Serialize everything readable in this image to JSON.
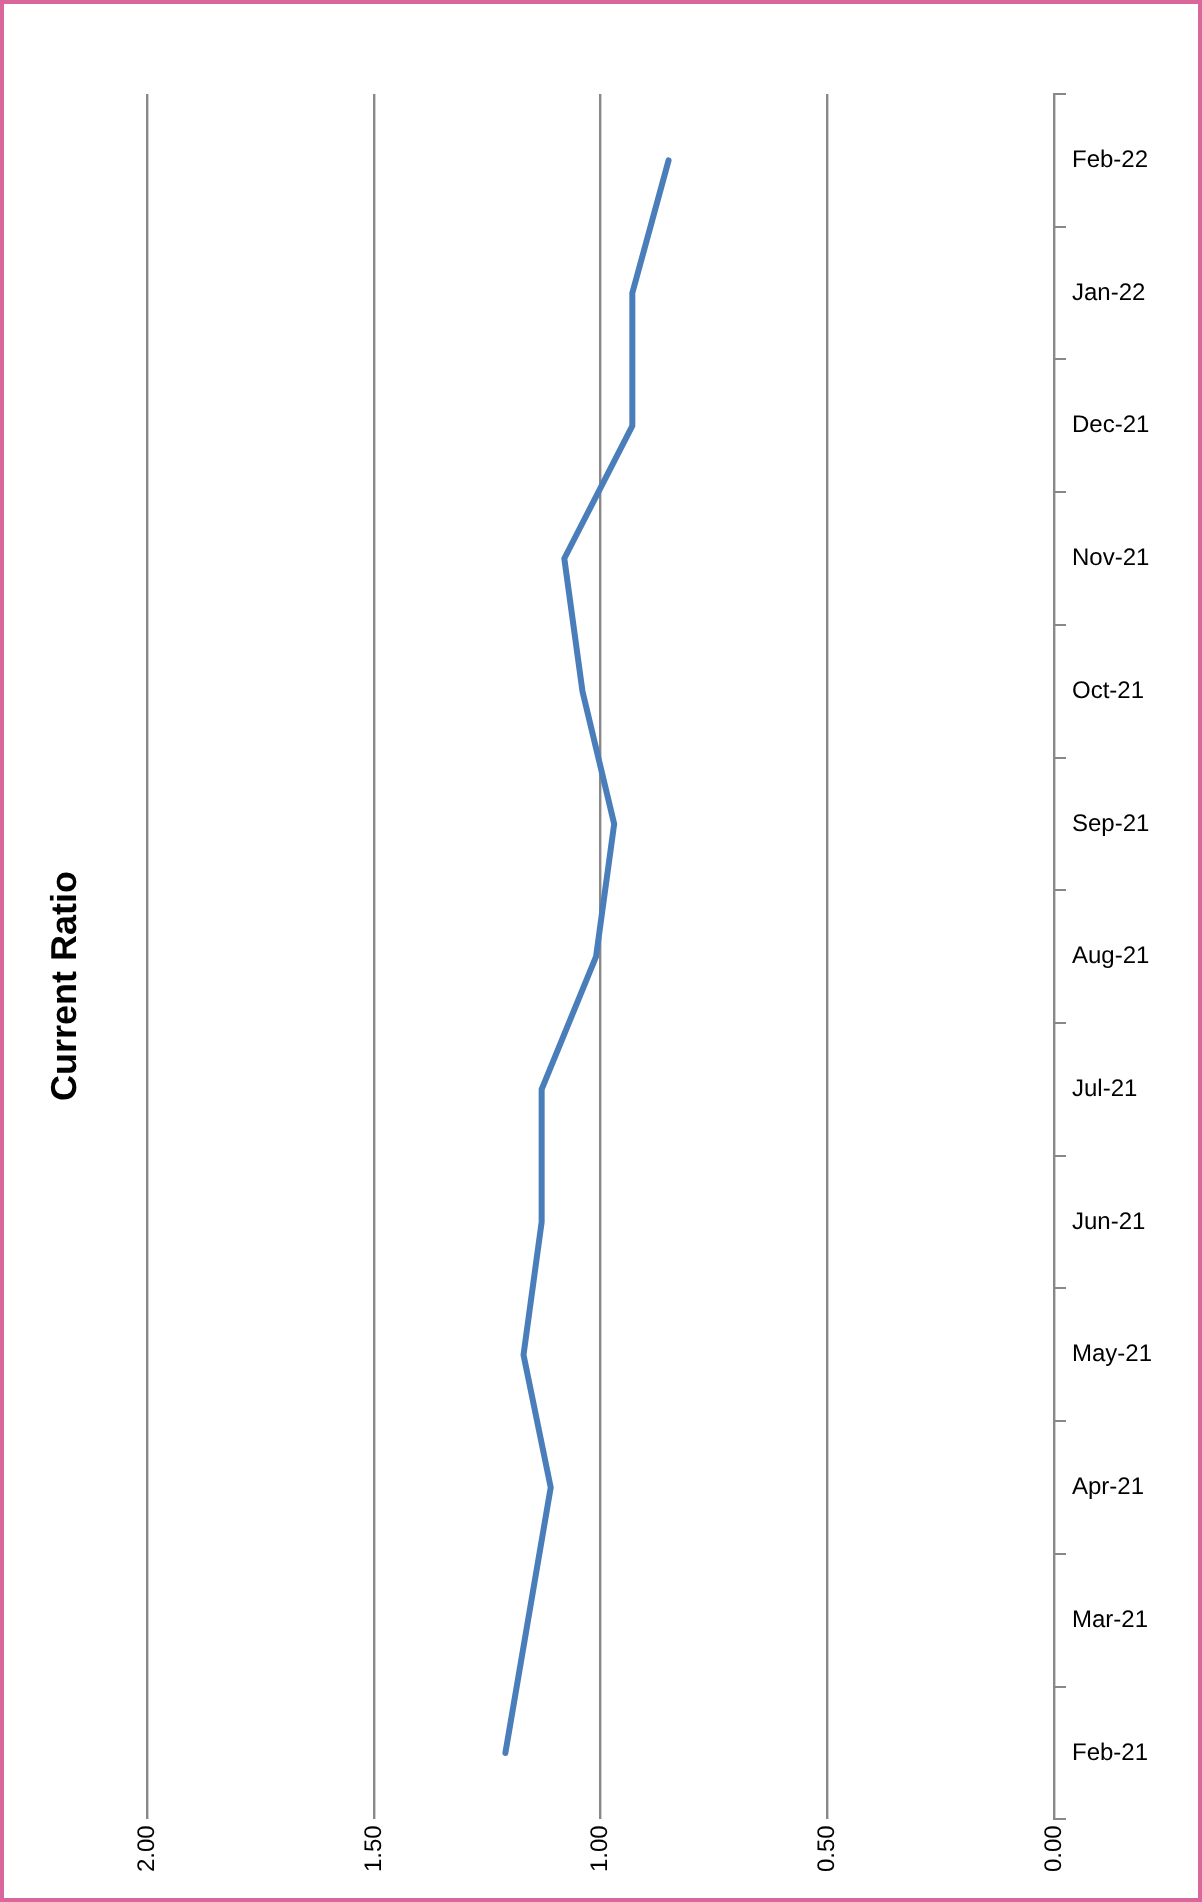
{
  "chart_data": {
    "type": "line",
    "title": "Current Ratio",
    "orientation": "horizontal",
    "categories": [
      "Feb-22",
      "Jan-22",
      "Dec-21",
      "Nov-21",
      "Oct-21",
      "Sep-21",
      "Aug-21",
      "Jul-21",
      "Jun-21",
      "May-21",
      "Apr-21",
      "Mar-21",
      "Feb-21"
    ],
    "series": [
      {
        "color": "#4a7ebb",
        "values": [
          0.85,
          0.93,
          0.93,
          1.08,
          1.04,
          0.97,
          1.01,
          1.13,
          1.13,
          1.17,
          1.11,
          1.16,
          1.21
        ]
      }
    ],
    "xlim": [
      2,
      0
    ],
    "xticks": [
      {
        "value": 2,
        "label": "2.00"
      },
      {
        "value": 1.5,
        "label": "1.50"
      },
      {
        "value": 1,
        "label": "1.00"
      },
      {
        "value": 0.5,
        "label": "0.50"
      },
      {
        "value": 0,
        "label": "0.00"
      }
    ],
    "grid": "x",
    "legend": false,
    "marker": "none",
    "line_style": "solid"
  }
}
